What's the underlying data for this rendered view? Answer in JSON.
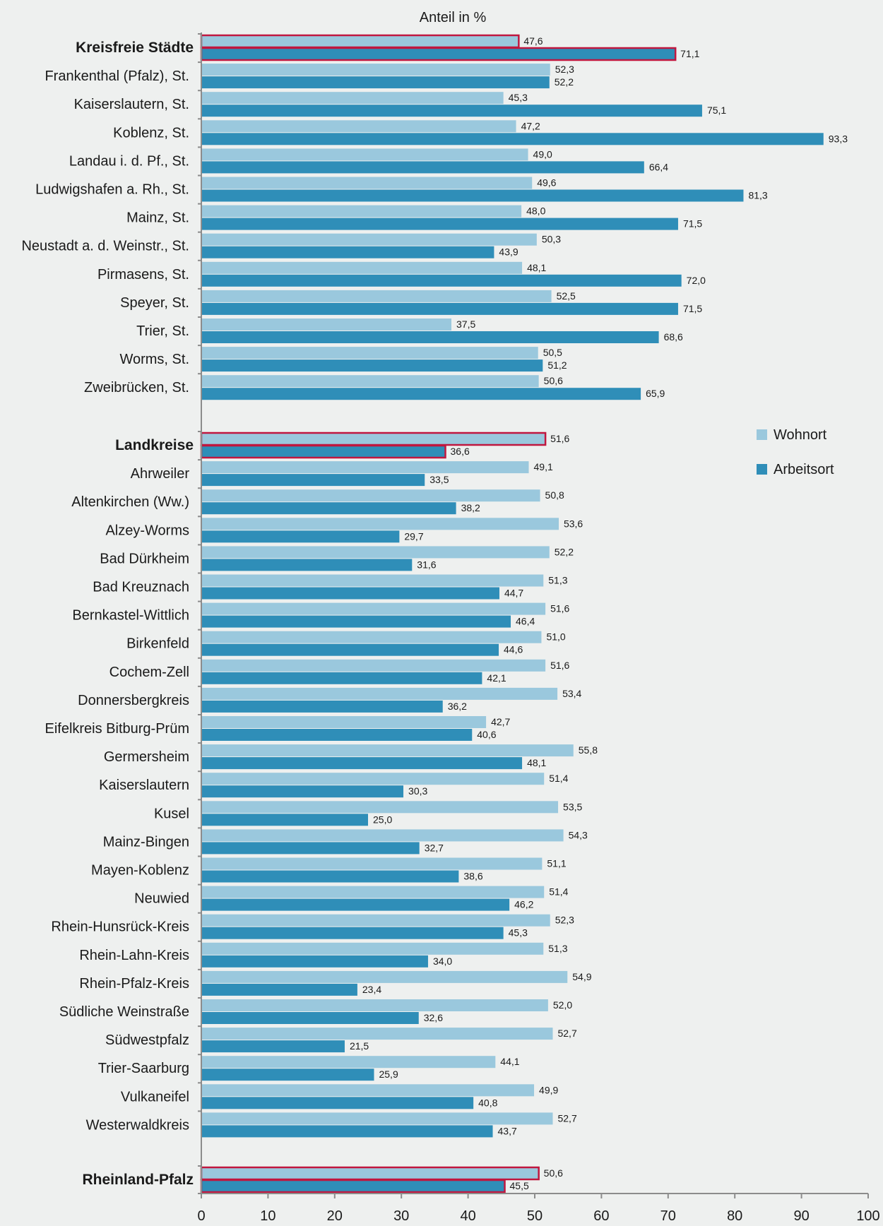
{
  "chart_data": {
    "type": "bar",
    "orientation": "horizontal",
    "title": "Anteil in %",
    "xlim": [
      0,
      100
    ],
    "x_ticks": [
      0,
      10,
      20,
      30,
      40,
      50,
      60,
      70,
      80,
      90,
      100
    ],
    "grid": false,
    "legend_position": "right",
    "series": [
      {
        "name": "Wohnort",
        "color": "#9ac8dd"
      },
      {
        "name": "Arbeitsort",
        "color": "#2f8eb8"
      }
    ],
    "highlight_color": "#c0173f",
    "rows": [
      {
        "label": "Kreisfreie Städte",
        "bold": true,
        "highlight": true,
        "wohnort": 47.6,
        "arbeitsort": 71.1,
        "wohnort_label": "47,6",
        "arbeitsort_label": "71,1"
      },
      {
        "label": "Frankenthal (Pfalz), St.",
        "wohnort": 52.3,
        "arbeitsort": 52.2,
        "wohnort_label": "52,3",
        "arbeitsort_label": "52,2"
      },
      {
        "label": "Kaiserslautern, St.",
        "wohnort": 45.3,
        "arbeitsort": 75.1,
        "wohnort_label": "45,3",
        "arbeitsort_label": "75,1"
      },
      {
        "label": "Koblenz, St.",
        "wohnort": 47.2,
        "arbeitsort": 93.3,
        "wohnort_label": "47,2",
        "arbeitsort_label": "93,3"
      },
      {
        "label": "Landau i. d. Pf., St.",
        "wohnort": 49.0,
        "arbeitsort": 66.4,
        "wohnort_label": "49,0",
        "arbeitsort_label": "66,4"
      },
      {
        "label": "Ludwigshafen a. Rh., St.",
        "wohnort": 49.6,
        "arbeitsort": 81.3,
        "wohnort_label": "49,6",
        "arbeitsort_label": "81,3"
      },
      {
        "label": "Mainz, St.",
        "wohnort": 48.0,
        "arbeitsort": 71.5,
        "wohnort_label": "48,0",
        "arbeitsort_label": "71,5"
      },
      {
        "label": "Neustadt a. d. Weinstr., St.",
        "wohnort": 50.3,
        "arbeitsort": 43.9,
        "wohnort_label": "50,3",
        "arbeitsort_label": "43,9"
      },
      {
        "label": "Pirmasens, St.",
        "wohnort": 48.1,
        "arbeitsort": 72.0,
        "wohnort_label": "48,1",
        "arbeitsort_label": "72,0"
      },
      {
        "label": "Speyer, St.",
        "wohnort": 52.5,
        "arbeitsort": 71.5,
        "wohnort_label": "52,5",
        "arbeitsort_label": "71,5"
      },
      {
        "label": "Trier, St.",
        "wohnort": 37.5,
        "arbeitsort": 68.6,
        "wohnort_label": "37,5",
        "arbeitsort_label": "68,6"
      },
      {
        "label": "Worms, St.",
        "wohnort": 50.5,
        "arbeitsort": 51.2,
        "wohnort_label": "50,5",
        "arbeitsort_label": "51,2"
      },
      {
        "label": "Zweibrücken, St.",
        "wohnort": 50.6,
        "arbeitsort": 65.9,
        "wohnort_label": "50,6",
        "arbeitsort_label": "65,9"
      },
      {
        "label": "Landkreise",
        "bold": true,
        "highlight": true,
        "wohnort": 51.6,
        "arbeitsort": 36.6,
        "wohnort_label": "51,6",
        "arbeitsort_label": "36,6"
      },
      {
        "label": "Ahrweiler",
        "wohnort": 49.1,
        "arbeitsort": 33.5,
        "wohnort_label": "49,1",
        "arbeitsort_label": "33,5"
      },
      {
        "label": "Altenkirchen (Ww.)",
        "wohnort": 50.8,
        "arbeitsort": 38.2,
        "wohnort_label": "50,8",
        "arbeitsort_label": "38,2"
      },
      {
        "label": "Alzey-Worms",
        "wohnort": 53.6,
        "arbeitsort": 29.7,
        "wohnort_label": "53,6",
        "arbeitsort_label": "29,7"
      },
      {
        "label": "Bad Dürkheim",
        "wohnort": 52.2,
        "arbeitsort": 31.6,
        "wohnort_label": "52,2",
        "arbeitsort_label": "31,6"
      },
      {
        "label": "Bad Kreuznach",
        "wohnort": 51.3,
        "arbeitsort": 44.7,
        "wohnort_label": "51,3",
        "arbeitsort_label": "44,7"
      },
      {
        "label": "Bernkastel-Wittlich",
        "wohnort": 51.6,
        "arbeitsort": 46.4,
        "wohnort_label": "51,6",
        "arbeitsort_label": "46,4"
      },
      {
        "label": "Birkenfeld",
        "wohnort": 51.0,
        "arbeitsort": 44.6,
        "wohnort_label": "51,0",
        "arbeitsort_label": "44,6"
      },
      {
        "label": "Cochem-Zell",
        "wohnort": 51.6,
        "arbeitsort": 42.1,
        "wohnort_label": "51,6",
        "arbeitsort_label": "42,1"
      },
      {
        "label": "Donnersbergkreis",
        "wohnort": 53.4,
        "arbeitsort": 36.2,
        "wohnort_label": "53,4",
        "arbeitsort_label": "36,2"
      },
      {
        "label": "Eifelkreis Bitburg-Prüm",
        "wohnort": 42.7,
        "arbeitsort": 40.6,
        "wohnort_label": "42,7",
        "arbeitsort_label": "40,6"
      },
      {
        "label": "Germersheim",
        "wohnort": 55.8,
        "arbeitsort": 48.1,
        "wohnort_label": "55,8",
        "arbeitsort_label": "48,1"
      },
      {
        "label": "Kaiserslautern",
        "wohnort": 51.4,
        "arbeitsort": 30.3,
        "wohnort_label": "51,4",
        "arbeitsort_label": "30,3"
      },
      {
        "label": "Kusel",
        "wohnort": 53.5,
        "arbeitsort": 25.0,
        "wohnort_label": "53,5",
        "arbeitsort_label": "25,0"
      },
      {
        "label": "Mainz-Bingen",
        "wohnort": 54.3,
        "arbeitsort": 32.7,
        "wohnort_label": "54,3",
        "arbeitsort_label": "32,7"
      },
      {
        "label": "Mayen-Koblenz",
        "wohnort": 51.1,
        "arbeitsort": 38.6,
        "wohnort_label": "51,1",
        "arbeitsort_label": "38,6"
      },
      {
        "label": "Neuwied",
        "wohnort": 51.4,
        "arbeitsort": 46.2,
        "wohnort_label": "51,4",
        "arbeitsort_label": "46,2"
      },
      {
        "label": "Rhein-Hunsrück-Kreis",
        "wohnort": 52.3,
        "arbeitsort": 45.3,
        "wohnort_label": "52,3",
        "arbeitsort_label": "45,3"
      },
      {
        "label": "Rhein-Lahn-Kreis",
        "wohnort": 51.3,
        "arbeitsort": 34.0,
        "wohnort_label": "51,3",
        "arbeitsort_label": "34,0"
      },
      {
        "label": "Rhein-Pfalz-Kreis",
        "wohnort": 54.9,
        "arbeitsort": 23.4,
        "wohnort_label": "54,9",
        "arbeitsort_label": "23,4"
      },
      {
        "label": "Südliche Weinstraße",
        "wohnort": 52.0,
        "arbeitsort": 32.6,
        "wohnort_label": "52,0",
        "arbeitsort_label": "32,6"
      },
      {
        "label": "Südwestpfalz",
        "wohnort": 52.7,
        "arbeitsort": 21.5,
        "wohnort_label": "52,7",
        "arbeitsort_label": "21,5"
      },
      {
        "label": "Trier-Saarburg",
        "wohnort": 44.1,
        "arbeitsort": 25.9,
        "wohnort_label": "44,1",
        "arbeitsort_label": "25,9"
      },
      {
        "label": "Vulkaneifel",
        "wohnort": 49.9,
        "arbeitsort": 40.8,
        "wohnort_label": "49,9",
        "arbeitsort_label": "40,8"
      },
      {
        "label": "Westerwaldkreis",
        "wohnort": 52.7,
        "arbeitsort": 43.7,
        "wohnort_label": "52,7",
        "arbeitsort_label": "43,7"
      },
      {
        "label": "Rheinland-Pfalz",
        "bold": true,
        "highlight": true,
        "wohnort": 50.6,
        "arbeitsort": 45.5,
        "wohnort_label": "50,6",
        "arbeitsort_label": "45,5"
      }
    ]
  }
}
